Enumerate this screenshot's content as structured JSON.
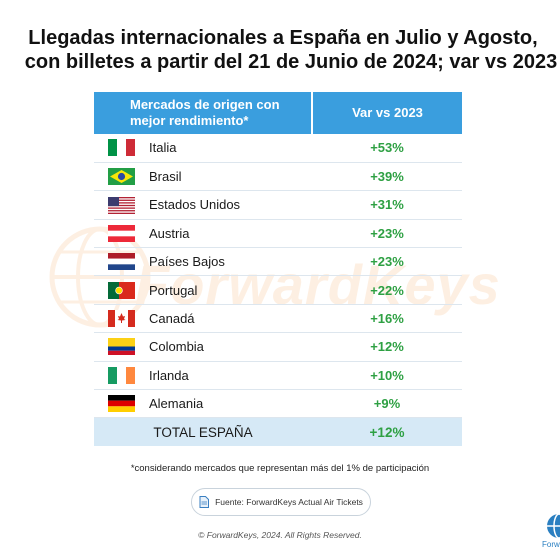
{
  "title": {
    "line1": "Llegadas internacionales a España en Julio y Agosto,",
    "line2": "con billetes a partir del 21 de Junio de 2024; var vs 2023"
  },
  "watermark_text": "ForwardKeys",
  "table": {
    "header_market": "Mercados de origen con mejor rendimiento*",
    "header_var": "Var vs 2023",
    "total_label": "TOTAL ESPAÑA",
    "total_value": "+12%"
  },
  "chart_data": {
    "type": "table",
    "title": "Llegadas internacionales a España en Julio y Agosto, con billetes a partir del 21 de Junio de 2024; var vs 2023",
    "columns": [
      "Mercados de origen con mejor rendimiento*",
      "Var vs 2023"
    ],
    "categories": [
      "Italia",
      "Brasil",
      "Estados Unidos",
      "Austria",
      "Países Bajos",
      "Portugal",
      "Canadá",
      "Colombia",
      "Irlanda",
      "Alemania"
    ],
    "series": [
      {
        "name": "Var vs 2023",
        "values": [
          53,
          39,
          31,
          23,
          23,
          22,
          16,
          12,
          10,
          9
        ]
      }
    ],
    "labels": [
      "+53%",
      "+39%",
      "+31%",
      "+23%",
      "+23%",
      "+22%",
      "+16%",
      "+12%",
      "+10%",
      "+9%"
    ],
    "flags": [
      "italy-flag",
      "brazil-flag",
      "usa-flag",
      "austria-flag",
      "netherlands-flag",
      "portugal-flag",
      "canada-flag",
      "colombia-flag",
      "ireland-flag",
      "germany-flag"
    ],
    "total": {
      "label": "TOTAL ESPAÑA",
      "value": 12,
      "text": "+12%"
    }
  },
  "footnote": "*considerando mercados que representan más del 1% de participación",
  "source": "Fuente: ForwardKeys Actual Air Tickets",
  "copyright": "© ForwardKeys, 2024. All Rights Reserved.",
  "logo_text": "Forwa",
  "colors": {
    "header_bg": "#3a9ede",
    "positive": "#2ea043",
    "total_bg": "#d6e9f6",
    "brand_orange": "#f28a2b"
  }
}
